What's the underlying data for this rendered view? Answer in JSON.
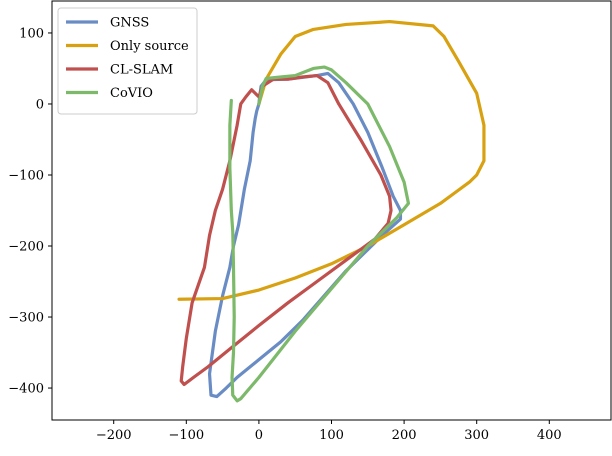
{
  "chart_data": {
    "type": "line",
    "title": "",
    "xlabel": "",
    "ylabel": "",
    "xlim": [
      -285,
      485
    ],
    "ylim": [
      -445,
      145
    ],
    "xticks": [
      -200,
      -100,
      0,
      100,
      200,
      300,
      400
    ],
    "yticks": [
      -400,
      -300,
      -200,
      -100,
      0,
      100
    ],
    "x_tick_labels": [
      "−200",
      "−100",
      "0",
      "100",
      "200",
      "300",
      "400"
    ],
    "y_tick_labels": [
      "−400",
      "−300",
      "−200",
      "−100",
      "0",
      "100"
    ],
    "grid": false,
    "legend_position": "top-left",
    "series": [
      {
        "name": "GNSS",
        "color": "#6a8cc4",
        "x": [
          0,
          1,
          3,
          10,
          40,
          80,
          95,
          110,
          130,
          150,
          170,
          185,
          195,
          195,
          170,
          150,
          120,
          90,
          60,
          30,
          0,
          -30,
          -45,
          -58,
          -66,
          -68,
          -60,
          -50,
          -40,
          -35,
          -28,
          -20,
          -12,
          -8,
          -5,
          -3,
          0
        ],
        "y": [
          0,
          10,
          25,
          34,
          35,
          40,
          43,
          30,
          0,
          -40,
          -90,
          -130,
          -150,
          -162,
          -185,
          -205,
          -235,
          -270,
          -305,
          -335,
          -360,
          -385,
          -400,
          -412,
          -410,
          -380,
          -320,
          -270,
          -230,
          -200,
          -170,
          -120,
          -80,
          -40,
          -20,
          -10,
          0
        ]
      },
      {
        "name": "Only source",
        "color": "#d8a111",
        "x": [
          0,
          10,
          30,
          50,
          75,
          120,
          180,
          240,
          255,
          275,
          300,
          310,
          310,
          300,
          290,
          270,
          250,
          200,
          150,
          100,
          50,
          0,
          -50,
          -110
        ],
        "y": [
          0,
          35,
          70,
          95,
          105,
          112,
          116,
          110,
          95,
          60,
          15,
          -30,
          -80,
          -100,
          -110,
          -125,
          -140,
          -170,
          -200,
          -225,
          -245,
          -262,
          -274,
          -275
        ]
      },
      {
        "name": "CL-SLAM",
        "color": "#c0504d",
        "x": [
          -10,
          -18,
          -25,
          -30,
          -40,
          -50,
          -60,
          -68,
          -75,
          -92,
          -100,
          -105,
          -107,
          -103,
          -90,
          -70,
          -40,
          0,
          40,
          80,
          120,
          160,
          178,
          182,
          180,
          168,
          140,
          110,
          95,
          80,
          60,
          40,
          20,
          5,
          0,
          -10
        ],
        "y": [
          20,
          10,
          0,
          -30,
          -80,
          -120,
          -150,
          -185,
          -230,
          -280,
          -330,
          -370,
          -390,
          -395,
          -385,
          -370,
          -345,
          -312,
          -280,
          -250,
          -220,
          -190,
          -168,
          -150,
          -130,
          -100,
          -50,
          0,
          30,
          40,
          38,
          35,
          35,
          25,
          10,
          20
        ]
      },
      {
        "name": "CoVIO",
        "color": "#7cb96a",
        "x": [
          -38,
          -40,
          -40,
          -38,
          -36,
          -35,
          -34,
          -35,
          -37,
          -36,
          -30,
          -25,
          0,
          50,
          100,
          150,
          190,
          206,
          200,
          180,
          150,
          120,
          100,
          90,
          75,
          50,
          30,
          10,
          5,
          0
        ],
        "y": [
          5,
          -30,
          -90,
          -150,
          -180,
          -230,
          -300,
          -350,
          -385,
          -410,
          -418,
          -415,
          -385,
          -320,
          -260,
          -200,
          -160,
          -140,
          -110,
          -60,
          0,
          30,
          48,
          52,
          50,
          40,
          38,
          36,
          25,
          0
        ]
      }
    ]
  }
}
